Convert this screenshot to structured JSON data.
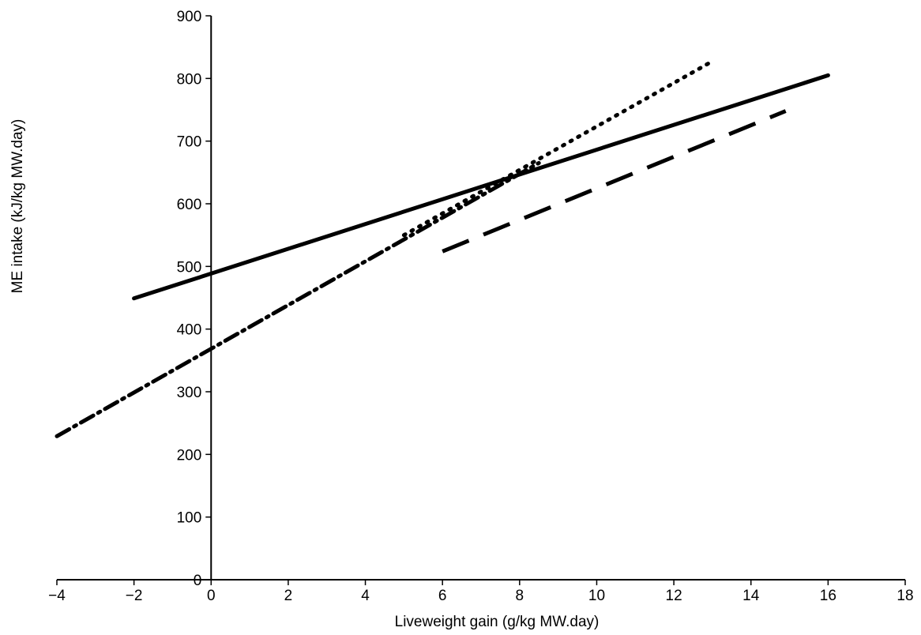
{
  "chart_data": {
    "type": "line",
    "title": "",
    "xlabel": "Liveweight gain (g/kg MW.day)",
    "ylabel": "ME intake (kJ/kg MW.day)",
    "xlim": [
      -4,
      18
    ],
    "ylim": [
      0,
      900
    ],
    "x_ticks": [
      -4,
      -2,
      0,
      2,
      4,
      6,
      8,
      10,
      12,
      14,
      16,
      18
    ],
    "y_ticks": [
      0,
      100,
      200,
      300,
      400,
      500,
      600,
      700,
      800,
      900
    ],
    "x_tick_labels": [
      "−4",
      "−2",
      "0",
      "2",
      "4",
      "6",
      "8",
      "10",
      "12",
      "14",
      "16",
      "18"
    ],
    "y_tick_labels": [
      "0",
      "100",
      "200",
      "300",
      "400",
      "500",
      "600",
      "700",
      "800",
      "900"
    ],
    "grid": false,
    "legend": "none",
    "series": [
      {
        "style": "solid",
        "color": "#000000",
        "x": [
          -2,
          16
        ],
        "y": [
          449,
          805
        ]
      },
      {
        "style": "dotted",
        "color": "#000000",
        "x": [
          5,
          12.9
        ],
        "y": [
          550,
          824
        ]
      },
      {
        "style": "dashdot",
        "color": "#000000",
        "x": [
          -4,
          8.5
        ],
        "y": [
          229,
          665
        ]
      },
      {
        "style": "dashed",
        "color": "#000000",
        "x": [
          6,
          14.9
        ],
        "y": [
          524,
          748
        ]
      }
    ]
  }
}
